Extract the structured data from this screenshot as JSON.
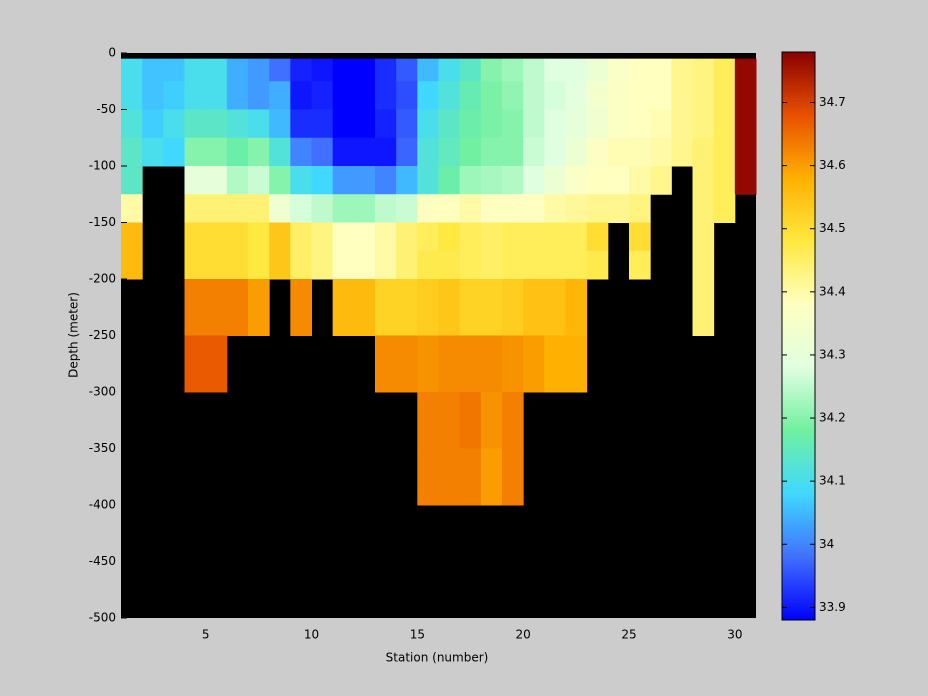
{
  "chart_data": {
    "type": "heatmap",
    "xlabel": "Station (number)",
    "ylabel": "Depth (meter)",
    "xlim": [
      1,
      31
    ],
    "ylim": [
      -500,
      0
    ],
    "xticks": [
      5,
      10,
      15,
      20,
      25,
      30
    ],
    "yticks": [
      0,
      -50,
      -100,
      -150,
      -200,
      -250,
      -300,
      -350,
      -400,
      -450,
      -500
    ],
    "background": "#000000",
    "clim": [
      33.88,
      34.78
    ],
    "cticks": [
      33.9,
      34,
      34.1,
      34.2,
      34.3,
      34.4,
      34.5,
      34.6,
      34.7
    ],
    "colormap": [
      "#0000ff",
      "#4070ff",
      "#40d8ff",
      "#70f0a0",
      "#e0ffe0",
      "#ffffc0",
      "#ffe840",
      "#ffb000",
      "#e85000",
      "#8a0000"
    ],
    "x_edges": [
      1,
      2,
      3,
      4,
      5,
      6,
      7,
      8,
      9,
      10,
      11,
      12,
      13,
      14,
      15,
      16,
      17,
      18,
      19,
      20,
      21,
      22,
      23,
      24,
      25,
      26,
      27,
      28,
      29,
      30,
      31
    ],
    "y_edges": [
      -5,
      -25,
      -50,
      -75,
      -100,
      -125,
      -150,
      -175,
      -200,
      -250,
      -300,
      -350,
      -400
    ],
    "values": [
      [
        34.1,
        34.06,
        34.06,
        34.1,
        34.1,
        34.04,
        34.02,
        33.98,
        33.91,
        33.9,
        33.88,
        33.88,
        33.92,
        33.96,
        34.05,
        34.1,
        34.14,
        34.2,
        34.22,
        34.25,
        34.28,
        34.28,
        34.32,
        34.36,
        34.38,
        34.38,
        34.42,
        34.43,
        34.46,
        34.77
      ],
      [
        34.1,
        34.06,
        34.07,
        34.1,
        34.1,
        34.04,
        34.02,
        34.04,
        33.9,
        33.91,
        33.88,
        33.88,
        33.92,
        33.95,
        34.08,
        34.12,
        34.16,
        34.19,
        34.21,
        34.25,
        34.27,
        34.29,
        34.34,
        34.37,
        34.38,
        34.38,
        34.42,
        34.43,
        34.46,
        34.77
      ],
      [
        34.12,
        34.07,
        34.1,
        34.14,
        34.14,
        34.12,
        34.1,
        34.05,
        33.92,
        33.92,
        33.88,
        33.88,
        33.91,
        33.96,
        34.1,
        34.14,
        34.17,
        34.19,
        34.2,
        34.25,
        34.28,
        34.3,
        34.33,
        34.37,
        34.38,
        34.39,
        34.42,
        34.43,
        34.46,
        34.77
      ],
      [
        34.14,
        34.1,
        34.08,
        34.2,
        34.2,
        34.17,
        34.2,
        34.12,
        34.0,
        33.98,
        33.9,
        33.9,
        33.9,
        33.97,
        34.12,
        34.15,
        34.18,
        34.2,
        34.2,
        34.26,
        34.28,
        34.32,
        34.37,
        34.39,
        34.39,
        34.4,
        34.42,
        34.44,
        34.46,
        34.77
      ],
      [
        34.14,
        null,
        null,
        34.3,
        34.3,
        34.24,
        34.26,
        34.2,
        34.1,
        34.08,
        34.02,
        34.02,
        34.0,
        34.05,
        34.12,
        34.17,
        34.22,
        34.23,
        34.24,
        34.28,
        34.32,
        34.36,
        34.38,
        34.38,
        34.4,
        34.42,
        null,
        34.44,
        34.46,
        34.77
      ],
      [
        34.4,
        null,
        null,
        34.44,
        34.44,
        34.44,
        34.44,
        34.33,
        34.27,
        34.25,
        34.22,
        34.22,
        34.25,
        34.26,
        34.38,
        34.38,
        34.4,
        34.38,
        34.38,
        34.38,
        34.4,
        34.41,
        34.42,
        34.42,
        34.43,
        null,
        null,
        34.44,
        34.46,
        null
      ],
      [
        34.56,
        null,
        null,
        34.5,
        34.5,
        34.5,
        34.48,
        34.54,
        34.45,
        34.43,
        34.38,
        34.38,
        34.4,
        34.44,
        34.46,
        34.48,
        34.46,
        34.45,
        34.46,
        34.46,
        34.46,
        34.46,
        34.5,
        null,
        34.5,
        null,
        null,
        34.44,
        null,
        null
      ],
      [
        34.56,
        null,
        null,
        34.5,
        34.5,
        34.5,
        34.48,
        34.54,
        34.45,
        34.43,
        34.38,
        34.38,
        34.4,
        34.44,
        34.47,
        34.47,
        34.46,
        34.45,
        34.46,
        34.46,
        34.46,
        34.46,
        34.47,
        null,
        34.46,
        null,
        null,
        34.44,
        null,
        null
      ],
      [
        null,
        null,
        null,
        34.63,
        34.63,
        34.63,
        34.6,
        null,
        34.62,
        null,
        34.56,
        34.56,
        34.52,
        34.52,
        34.53,
        34.54,
        34.52,
        34.52,
        34.53,
        34.55,
        34.55,
        34.57,
        null,
        null,
        null,
        null,
        null,
        34.44,
        null,
        null
      ],
      [
        null,
        null,
        null,
        34.67,
        34.67,
        null,
        null,
        null,
        null,
        null,
        null,
        null,
        34.62,
        34.62,
        34.61,
        34.62,
        34.62,
        34.62,
        34.61,
        34.6,
        34.58,
        34.58,
        null,
        null,
        null,
        null,
        null,
        null,
        null,
        null
      ],
      [
        null,
        null,
        null,
        null,
        null,
        null,
        null,
        null,
        null,
        null,
        null,
        null,
        null,
        null,
        34.63,
        34.63,
        34.64,
        34.61,
        34.63,
        null,
        null,
        null,
        null,
        null,
        null,
        null,
        null,
        null,
        null,
        null
      ],
      [
        null,
        null,
        null,
        null,
        null,
        null,
        null,
        null,
        null,
        null,
        null,
        null,
        null,
        null,
        34.63,
        34.63,
        34.63,
        34.6,
        34.63,
        null,
        null,
        null,
        null,
        null,
        null,
        null,
        null,
        null,
        null,
        null
      ]
    ]
  }
}
